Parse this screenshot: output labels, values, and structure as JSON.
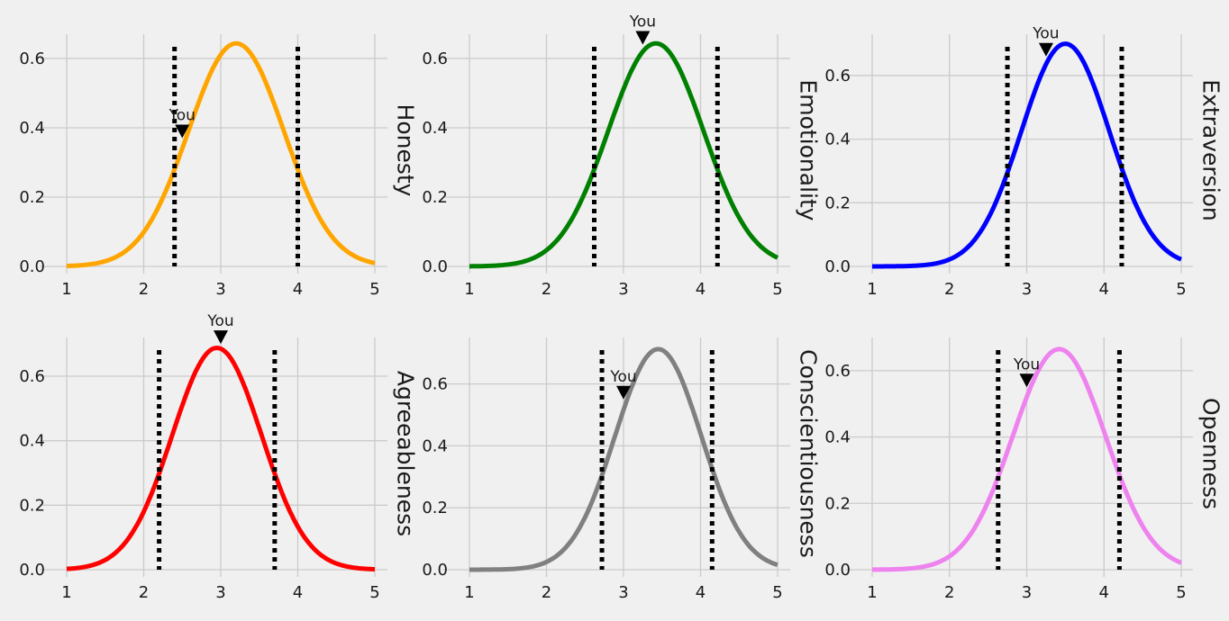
{
  "chart_data": [
    {
      "type": "line",
      "trait": "Honesty",
      "color": "#FFA500",
      "mean": 3.2,
      "sd": 0.62,
      "x_range": [
        1,
        5
      ],
      "ylim": [
        0,
        0.67
      ],
      "xticks": [
        1,
        2,
        3,
        4,
        5
      ],
      "yticks": [
        0.0,
        0.2,
        0.4,
        0.6
      ],
      "percentile_lines": [
        2.4,
        4.0
      ],
      "you": {
        "label": "You",
        "x": 2.5,
        "y": 0.37
      },
      "grid": true
    },
    {
      "type": "line",
      "trait": "Emotionality",
      "color": "#008000",
      "mean": 3.42,
      "sd": 0.62,
      "x_range": [
        1,
        5
      ],
      "ylim": [
        0,
        0.67
      ],
      "xticks": [
        1,
        2,
        3,
        4,
        5
      ],
      "yticks": [
        0.0,
        0.2,
        0.4,
        0.6
      ],
      "percentile_lines": [
        2.62,
        4.22
      ],
      "you": {
        "label": "You",
        "x": 3.25,
        "y": 0.64
      },
      "grid": true
    },
    {
      "type": "line",
      "trait": "Extraversion",
      "color": "#0000FF",
      "mean": 3.5,
      "sd": 0.57,
      "x_range": [
        1,
        5
      ],
      "ylim": [
        0,
        0.73
      ],
      "xticks": [
        1,
        2,
        3,
        4,
        5
      ],
      "yticks": [
        0.0,
        0.2,
        0.4,
        0.6
      ],
      "percentile_lines": [
        2.75,
        4.23
      ],
      "you": {
        "label": "You",
        "x": 3.25,
        "y": 0.66
      },
      "grid": true
    },
    {
      "type": "line",
      "trait": "Agreeableness",
      "color": "#FF0000",
      "mean": 2.95,
      "sd": 0.58,
      "x_range": [
        1,
        5
      ],
      "ylim": [
        0,
        0.72
      ],
      "xticks": [
        1,
        2,
        3,
        4,
        5
      ],
      "yticks": [
        0.0,
        0.2,
        0.4,
        0.6
      ],
      "percentile_lines": [
        2.2,
        3.7
      ],
      "you": {
        "label": "You",
        "x": 3.0,
        "y": 0.7
      },
      "grid": true
    },
    {
      "type": "line",
      "trait": "Conscientiousness",
      "color": "#808080",
      "mean": 3.45,
      "sd": 0.56,
      "x_range": [
        1,
        5
      ],
      "ylim": [
        0,
        0.75
      ],
      "xticks": [
        1,
        2,
        3,
        4,
        5
      ],
      "yticks": [
        0.0,
        0.2,
        0.4,
        0.6
      ],
      "percentile_lines": [
        2.72,
        4.15
      ],
      "you": {
        "label": "You",
        "x": 3.0,
        "y": 0.55
      },
      "grid": true
    },
    {
      "type": "line",
      "trait": "Openness",
      "color": "#EE82EE",
      "mean": 3.42,
      "sd": 0.6,
      "x_range": [
        1,
        5
      ],
      "ylim": [
        0,
        0.7
      ],
      "xticks": [
        1,
        2,
        3,
        4,
        5
      ],
      "yticks": [
        0.0,
        0.2,
        0.4,
        0.6
      ],
      "percentile_lines": [
        2.63,
        4.2
      ],
      "you": {
        "label": "You",
        "x": 3.0,
        "y": 0.55
      },
      "grid": true
    }
  ]
}
